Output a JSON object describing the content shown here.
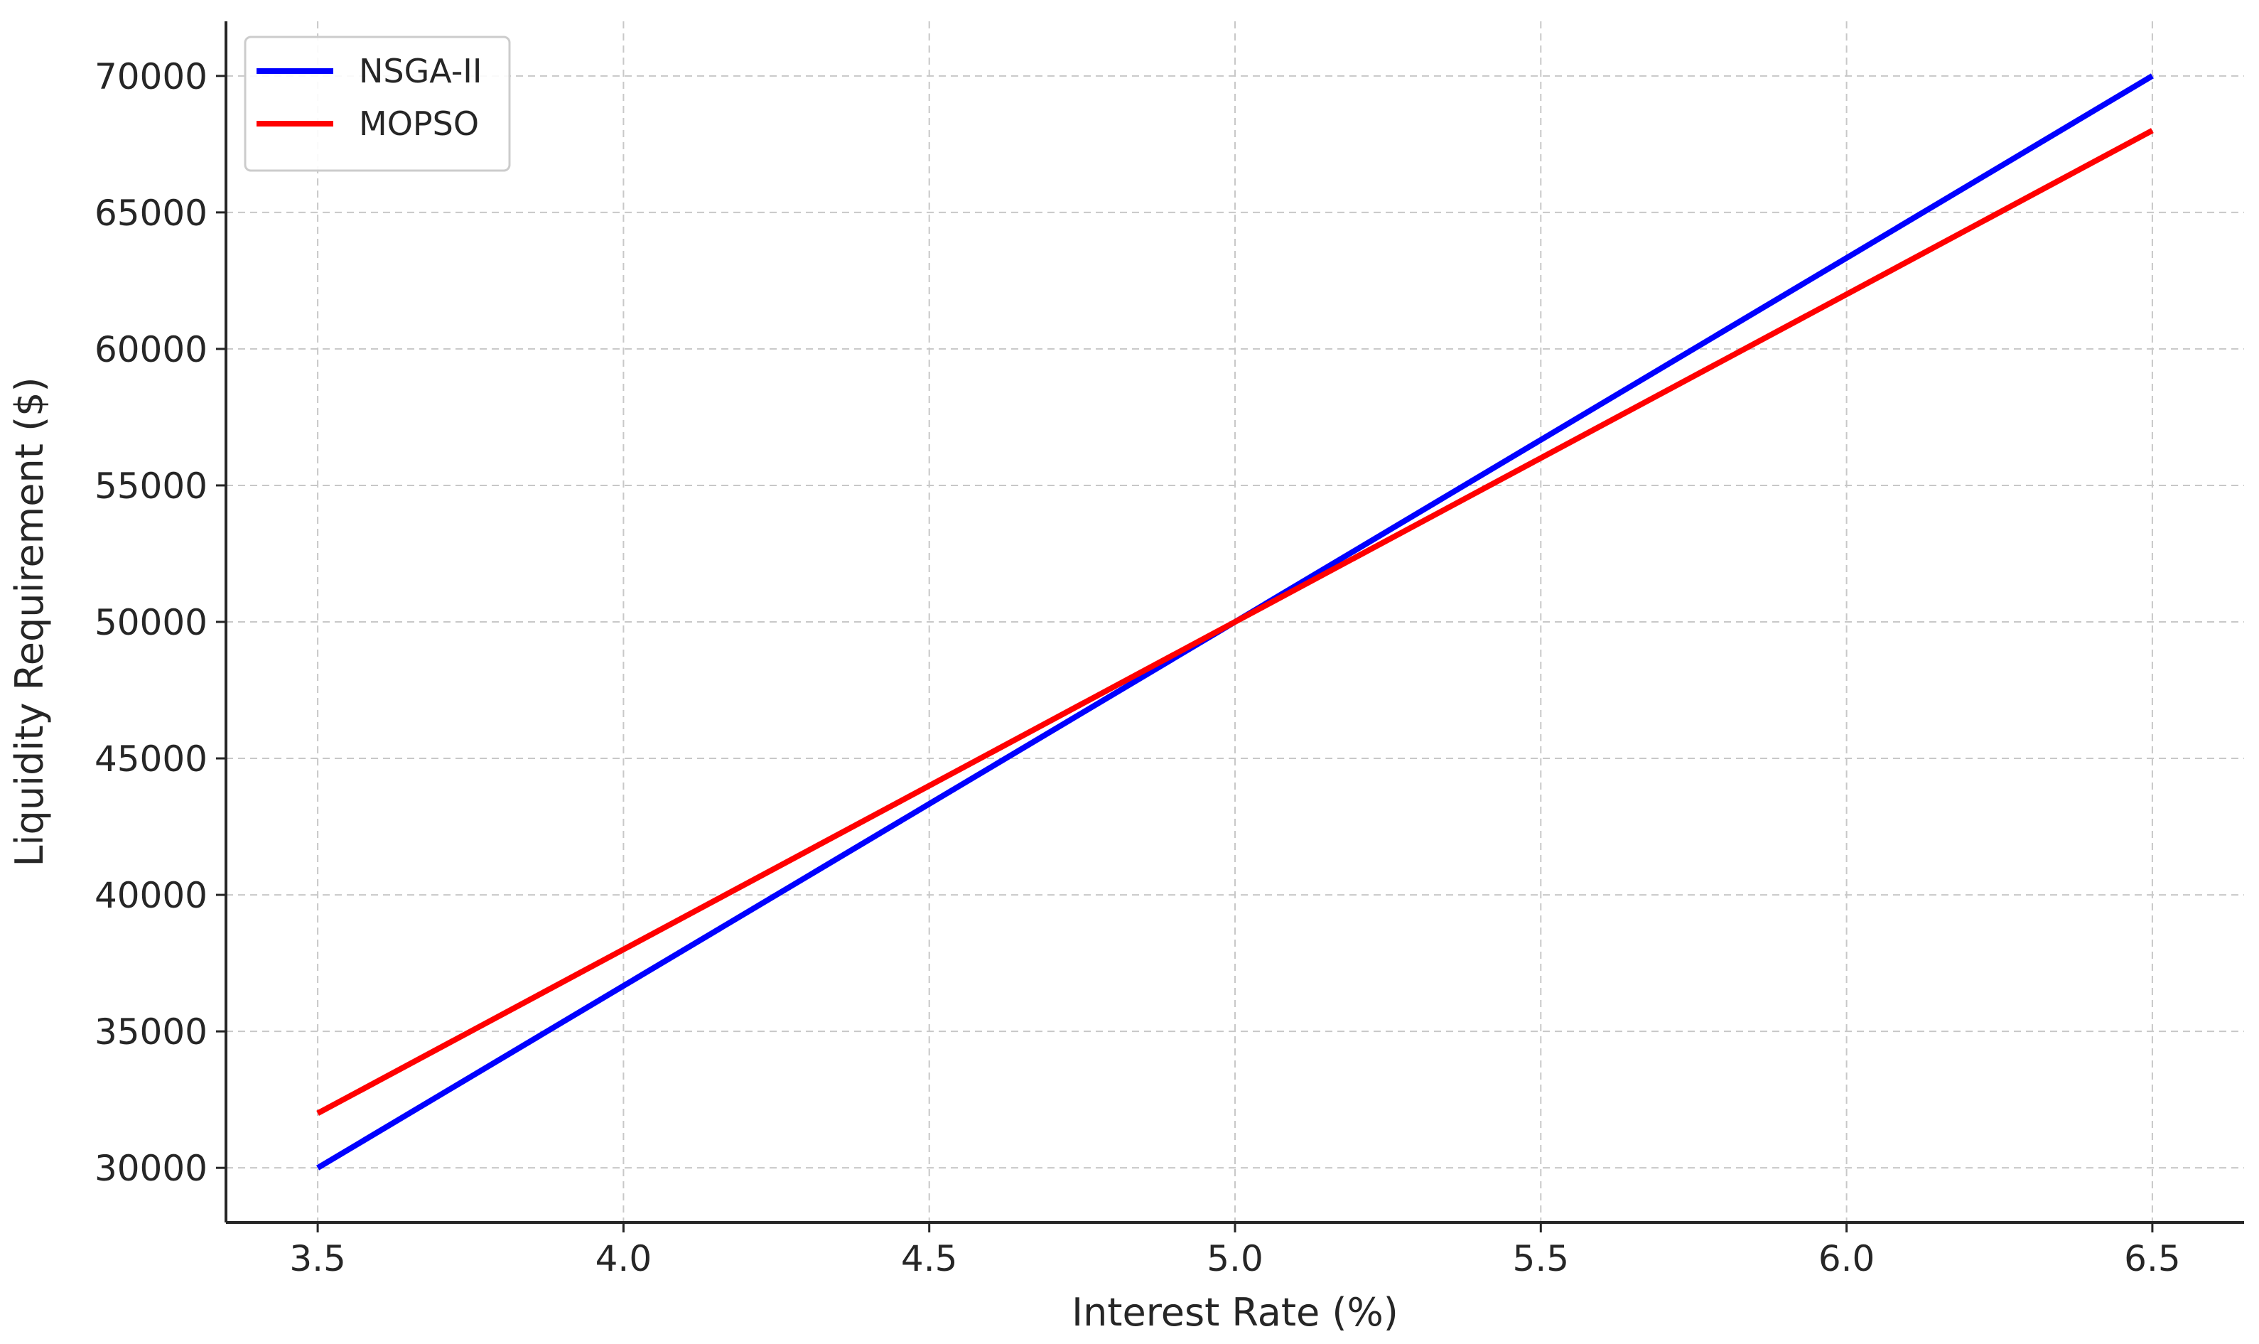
{
  "chart_data": {
    "type": "line",
    "title": "",
    "xlabel": "Interest Rate (%)",
    "ylabel": "Liquidity Requirement ($)",
    "x": [
      3.5,
      4.0,
      4.5,
      5.0,
      5.5,
      6.0,
      6.5
    ],
    "x_ticks": [
      "3.5",
      "4.0",
      "4.5",
      "5.0",
      "5.5",
      "6.0",
      "6.5"
    ],
    "y_ticks": [
      "30000",
      "35000",
      "40000",
      "45000",
      "50000",
      "55000",
      "60000",
      "65000",
      "70000"
    ],
    "xlim": [
      3.35,
      6.65
    ],
    "ylim": [
      28000,
      72000
    ],
    "grid": true,
    "legend_position": "top-left",
    "series": [
      {
        "name": "NSGA-II",
        "color": "#0000ff",
        "values": [
          30000,
          36667,
          43333,
          50000,
          56667,
          63333,
          70000
        ]
      },
      {
        "name": "MOPSO",
        "color": "#ff0000",
        "values": [
          32000,
          38000,
          44000,
          50000,
          56000,
          62000,
          68000
        ]
      }
    ]
  }
}
